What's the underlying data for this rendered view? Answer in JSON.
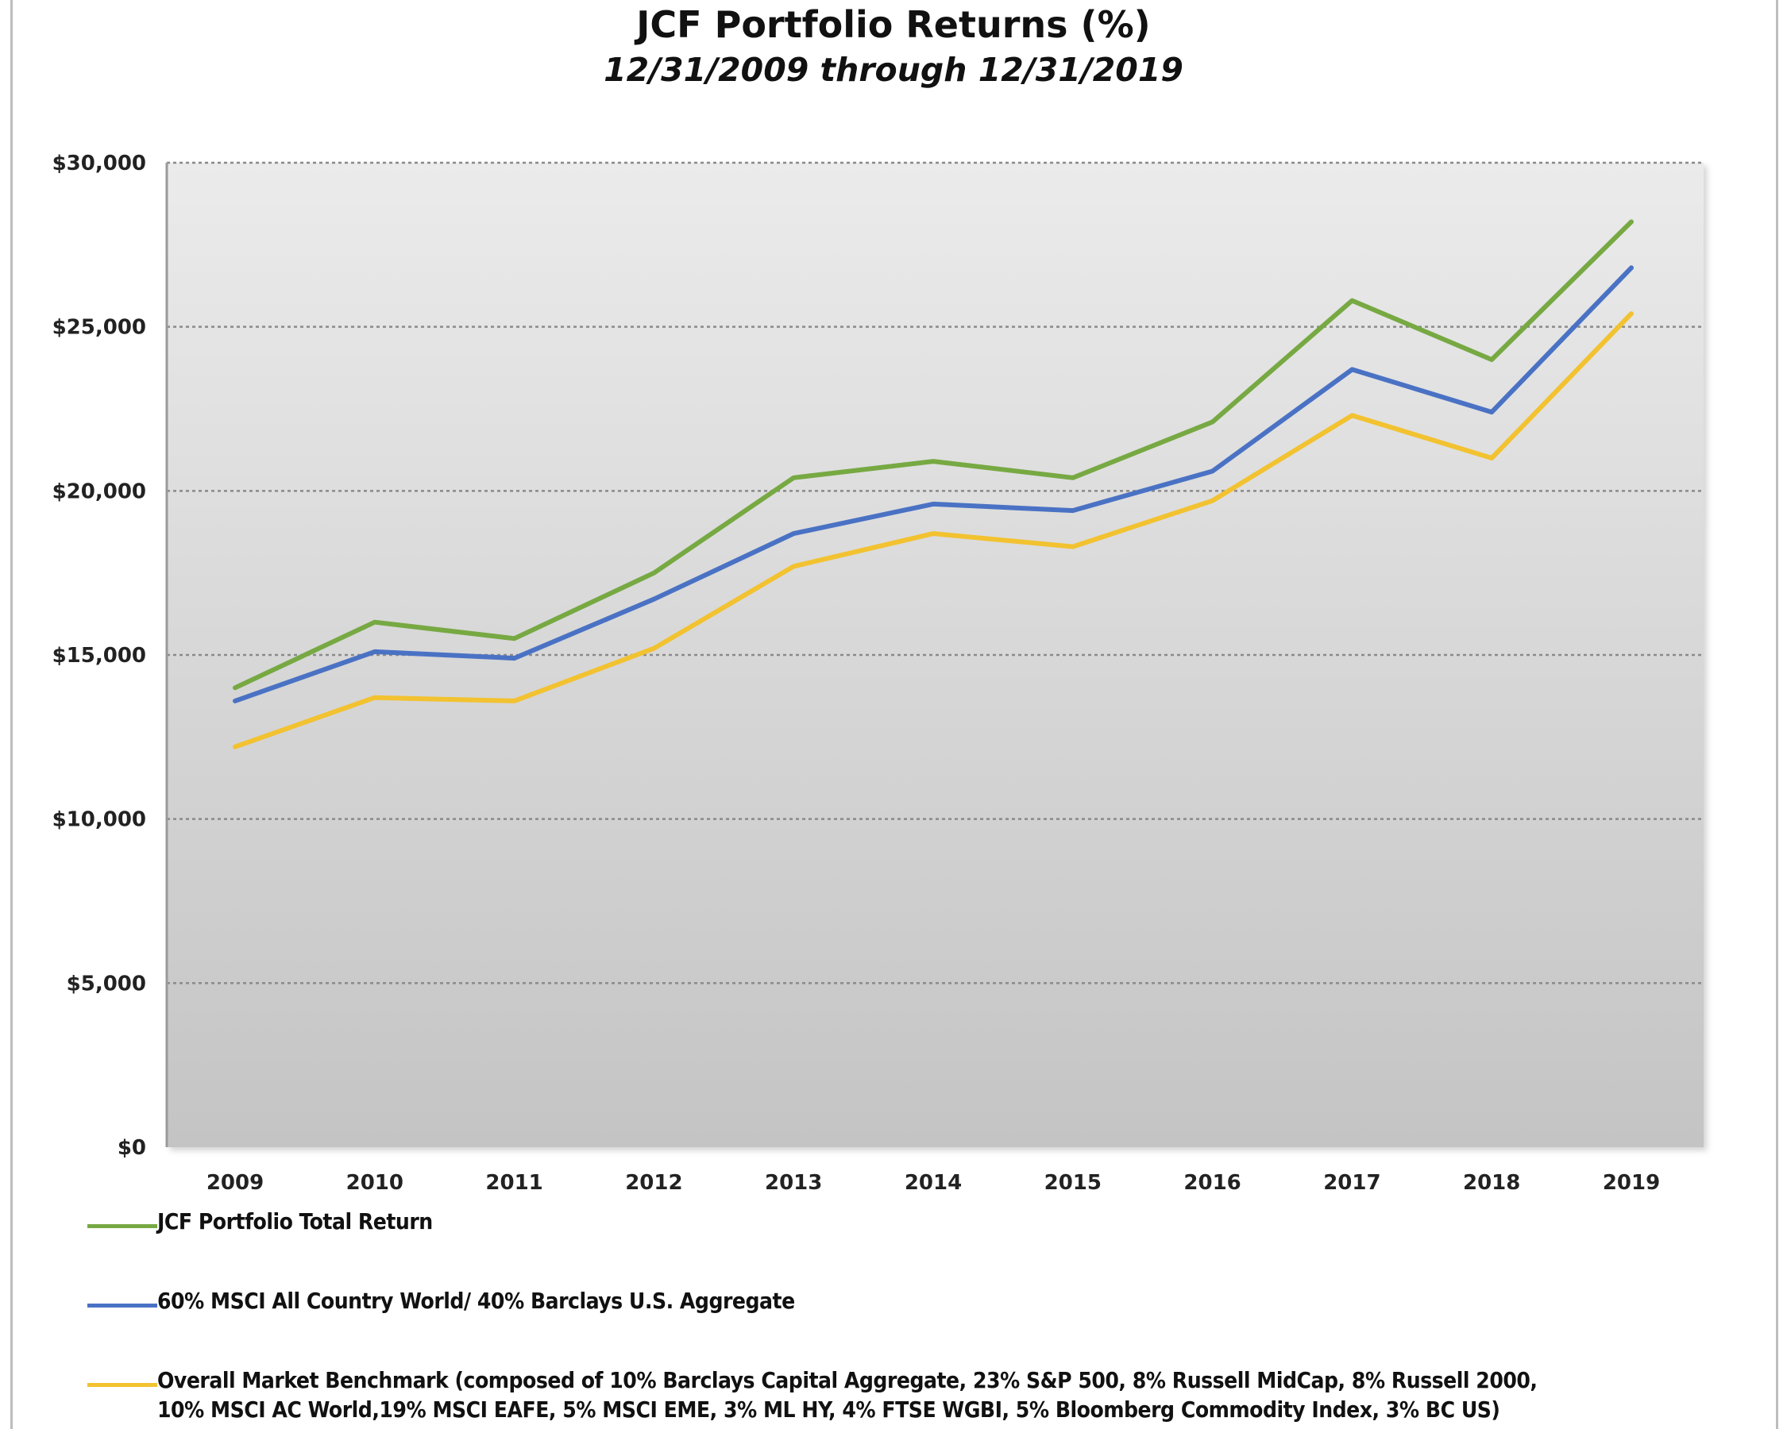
{
  "header": {
    "title": "JCF Portfolio Returns (%)",
    "subtitle": "12/31/2009 through 12/31/2019"
  },
  "colors": {
    "green": "#77a943",
    "blue": "#4a72c4",
    "yellow": "#f2c230",
    "plot_top": "#ebebeb",
    "plot_bottom": "#c4c4c4",
    "grid": "#8a8a8a"
  },
  "chart_data": {
    "type": "line",
    "title": "JCF Portfolio Returns (%)",
    "subtitle": "12/31/2009 through 12/31/2019",
    "xlabel": "",
    "ylabel": "",
    "x": [
      "2009",
      "2010",
      "2011",
      "2012",
      "2013",
      "2014",
      "2015",
      "2016",
      "2017",
      "2018",
      "2019"
    ],
    "ylim": [
      0,
      30000
    ],
    "yticks": [
      0,
      5000,
      10000,
      15000,
      20000,
      25000,
      30000
    ],
    "ytick_labels": [
      "$0",
      "$5,000",
      "$10,000",
      "$15,000",
      "$20,000",
      "$25,000",
      "$30,000"
    ],
    "grid": true,
    "legend_position": "bottom",
    "series": [
      {
        "name": "JCF Portfolio Total Return",
        "color": "#77a943",
        "values": [
          14000,
          16000,
          15500,
          17500,
          20400,
          20900,
          20400,
          22100,
          25800,
          24000,
          28200
        ]
      },
      {
        "name": "60% MSCI All Country World/ 40% Barclays U.S. Aggregate",
        "color": "#4a72c4",
        "values": [
          13600,
          15100,
          14900,
          16700,
          18700,
          19600,
          19400,
          20600,
          23700,
          22400,
          26800
        ]
      },
      {
        "name": "Overall Market Benchmark (composed of 10% Barclays Capital Aggregate, 23% S&P 500, 8% Russell MidCap, 8% Russell 2000,\n10% MSCI AC World,19% MSCI EAFE, 5% MSCI EME, 3% ML HY, 4% FTSE WGBI, 5% Bloomberg Commodity Index, 3% BC US)",
        "color": "#f2c230",
        "values": [
          12200,
          13700,
          13600,
          15200,
          17700,
          18700,
          18300,
          19700,
          22300,
          21000,
          25400
        ]
      }
    ]
  }
}
